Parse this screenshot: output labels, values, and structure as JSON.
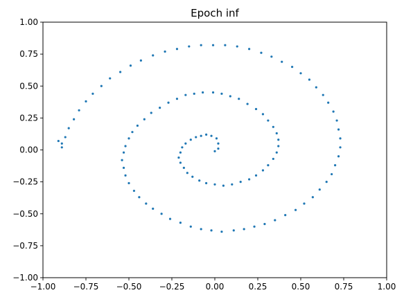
{
  "chart_data": {
    "type": "scatter",
    "title": "Epoch inf",
    "xlabel": "",
    "ylabel": "",
    "xlim": [
      -1.0,
      1.0
    ],
    "ylim": [
      -1.0,
      1.0
    ],
    "xticks": [
      "−1.00",
      "−0.75",
      "−0.50",
      "−0.25",
      "0.00",
      "0.25",
      "0.50",
      "0.75",
      "1.00"
    ],
    "yticks": [
      "1.00",
      "0.75",
      "0.50",
      "0.25",
      "0.00",
      "−0.25",
      "−0.50",
      "−0.75",
      "−1.00"
    ],
    "grid": false,
    "color": "#1f77b4",
    "series": [
      {
        "values": [
          [
            0.0,
            -0.01
          ],
          [
            0.02,
            0.01
          ],
          [
            0.02,
            0.05
          ],
          [
            0.01,
            0.09
          ],
          [
            -0.02,
            0.11
          ],
          [
            -0.05,
            0.12
          ],
          [
            -0.08,
            0.11
          ],
          [
            -0.11,
            0.1
          ],
          [
            -0.14,
            0.08
          ],
          [
            -0.17,
            0.05
          ],
          [
            -0.19,
            0.02
          ],
          [
            -0.2,
            -0.02
          ],
          [
            -0.21,
            -0.06
          ],
          [
            -0.2,
            -0.1
          ],
          [
            -0.18,
            -0.14
          ],
          [
            -0.16,
            -0.18
          ],
          [
            -0.13,
            -0.21
          ],
          [
            -0.09,
            -0.24
          ],
          [
            -0.05,
            -0.26
          ],
          [
            0.0,
            -0.27
          ],
          [
            0.05,
            -0.28
          ],
          [
            0.1,
            -0.27
          ],
          [
            0.15,
            -0.25
          ],
          [
            0.2,
            -0.23
          ],
          [
            0.24,
            -0.2
          ],
          [
            0.28,
            -0.16
          ],
          [
            0.31,
            -0.12
          ],
          [
            0.34,
            -0.07
          ],
          [
            0.36,
            -0.02
          ],
          [
            0.37,
            0.03
          ],
          [
            0.37,
            0.08
          ],
          [
            0.36,
            0.13
          ],
          [
            0.34,
            0.18
          ],
          [
            0.31,
            0.23
          ],
          [
            0.28,
            0.28
          ],
          [
            0.24,
            0.32
          ],
          [
            0.19,
            0.36
          ],
          [
            0.14,
            0.4
          ],
          [
            0.09,
            0.42
          ],
          [
            0.04,
            0.44
          ],
          [
            -0.01,
            0.45
          ],
          [
            -0.07,
            0.45
          ],
          [
            -0.12,
            0.44
          ],
          [
            -0.17,
            0.43
          ],
          [
            -0.22,
            0.4
          ],
          [
            -0.27,
            0.37
          ],
          [
            -0.32,
            0.33
          ],
          [
            -0.37,
            0.29
          ],
          [
            -0.41,
            0.24
          ],
          [
            -0.45,
            0.19
          ],
          [
            -0.48,
            0.14
          ],
          [
            -0.5,
            0.09
          ],
          [
            -0.52,
            0.03
          ],
          [
            -0.53,
            -0.02
          ],
          [
            -0.54,
            -0.08
          ],
          [
            -0.53,
            -0.14
          ],
          [
            -0.52,
            -0.2
          ],
          [
            -0.5,
            -0.26
          ],
          [
            -0.47,
            -0.32
          ],
          [
            -0.44,
            -0.37
          ],
          [
            -0.4,
            -0.42
          ],
          [
            -0.36,
            -0.46
          ],
          [
            -0.31,
            -0.5
          ],
          [
            -0.26,
            -0.54
          ],
          [
            -0.2,
            -0.57
          ],
          [
            -0.14,
            -0.6
          ],
          [
            -0.08,
            -0.62
          ],
          [
            -0.02,
            -0.63
          ],
          [
            0.04,
            -0.64
          ],
          [
            0.11,
            -0.63
          ],
          [
            0.17,
            -0.62
          ],
          [
            0.23,
            -0.6
          ],
          [
            0.29,
            -0.58
          ],
          [
            0.35,
            -0.55
          ],
          [
            0.41,
            -0.51
          ],
          [
            0.47,
            -0.47
          ],
          [
            0.52,
            -0.42
          ],
          [
            0.57,
            -0.37
          ],
          [
            0.61,
            -0.31
          ],
          [
            0.65,
            -0.25
          ],
          [
            0.68,
            -0.19
          ],
          [
            0.7,
            -0.12
          ],
          [
            0.72,
            -0.05
          ],
          [
            0.73,
            0.02
          ],
          [
            0.73,
            0.09
          ],
          [
            0.72,
            0.16
          ],
          [
            0.71,
            0.23
          ],
          [
            0.69,
            0.3
          ],
          [
            0.66,
            0.37
          ],
          [
            0.63,
            0.43
          ],
          [
            0.59,
            0.49
          ],
          [
            0.55,
            0.55
          ],
          [
            0.5,
            0.6
          ],
          [
            0.45,
            0.65
          ],
          [
            0.39,
            0.69
          ],
          [
            0.33,
            0.73
          ],
          [
            0.27,
            0.76
          ],
          [
            0.2,
            0.79
          ],
          [
            0.13,
            0.81
          ],
          [
            0.06,
            0.82
          ],
          [
            -0.01,
            0.82
          ],
          [
            -0.08,
            0.82
          ],
          [
            -0.15,
            0.81
          ],
          [
            -0.22,
            0.79
          ],
          [
            -0.29,
            0.77
          ],
          [
            -0.36,
            0.74
          ],
          [
            -0.43,
            0.7
          ],
          [
            -0.49,
            0.66
          ],
          [
            -0.55,
            0.61
          ],
          [
            -0.61,
            0.56
          ],
          [
            -0.66,
            0.5
          ],
          [
            -0.71,
            0.44
          ],
          [
            -0.75,
            0.38
          ],
          [
            -0.79,
            0.31
          ],
          [
            -0.82,
            0.24
          ],
          [
            -0.85,
            0.17
          ],
          [
            -0.87,
            0.1
          ],
          [
            -0.89,
            0.05
          ],
          [
            -0.89,
            0.02
          ],
          [
            -0.91,
            0.07
          ]
        ]
      }
    ]
  }
}
